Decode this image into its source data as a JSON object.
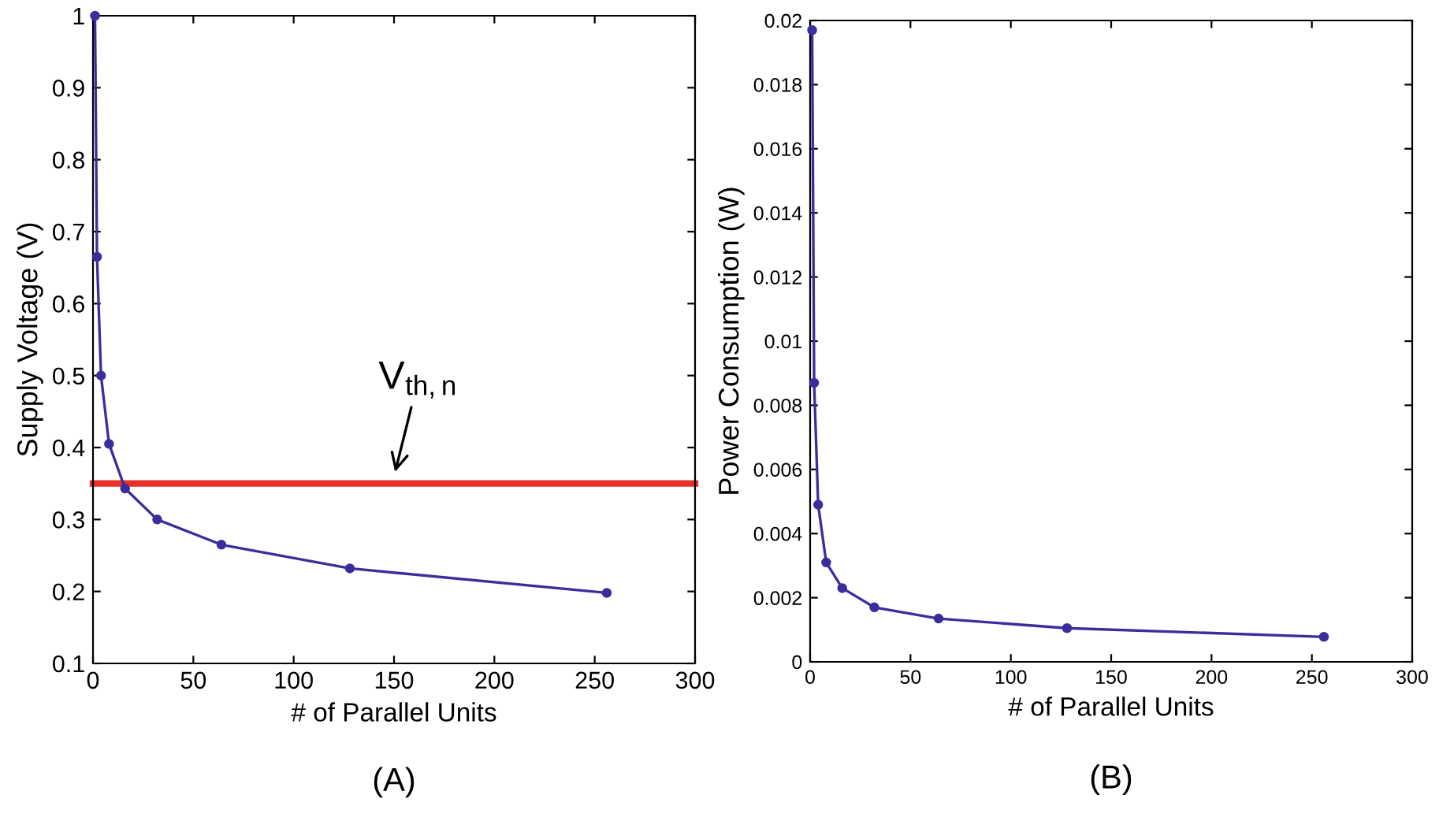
{
  "chart_data": [
    {
      "type": "line",
      "xlabel": "# of Parallel Units",
      "ylabel": "Supply Voltage (V)",
      "x": [
        1,
        2,
        4,
        8,
        16,
        32,
        64,
        128,
        256
      ],
      "series": [
        {
          "color": "#3a2e9c",
          "values": [
            1.0,
            0.665,
            0.5,
            0.405,
            0.343,
            0.3,
            0.265,
            0.232,
            0.198
          ]
        }
      ],
      "xlim": [
        0,
        300
      ],
      "xticks": [
        0,
        50,
        100,
        150,
        200,
        250,
        300
      ],
      "ylim": [
        0.1,
        1
      ],
      "yticks": [
        0.1,
        0.2,
        0.3,
        0.4,
        0.5,
        0.6,
        0.7,
        0.8,
        0.9,
        1
      ],
      "ref_lines": [
        {
          "axis": "y",
          "value": 0.35,
          "color": "#e8302a"
        }
      ],
      "annotations": [
        {
          "text": "V$_{th,n}$",
          "x": 150,
          "y": 0.36
        },
        "(A)"
      ],
      "marker": "circle",
      "grid": false
    },
    {
      "type": "line",
      "xlabel": "# of Parallel Units",
      "ylabel": "Power Consumption (W)",
      "x": [
        1,
        2,
        4,
        8,
        16,
        32,
        64,
        128,
        256
      ],
      "series": [
        {
          "color": "#3a2e9c",
          "values": [
            0.0197,
            0.0087,
            0.0049,
            0.0031,
            0.0023,
            0.0017,
            0.00135,
            0.00105,
            0.00078
          ]
        }
      ],
      "xlim": [
        0,
        300
      ],
      "xticks": [
        0,
        50,
        100,
        150,
        200,
        250,
        300
      ],
      "ylim": [
        0,
        0.02
      ],
      "yticks": [
        0,
        0.002,
        0.004,
        0.006,
        0.008,
        0.01,
        0.012,
        0.014,
        0.016,
        0.018,
        0.02
      ],
      "annotations": [
        "(B)"
      ],
      "marker": "circle",
      "grid": false
    }
  ]
}
